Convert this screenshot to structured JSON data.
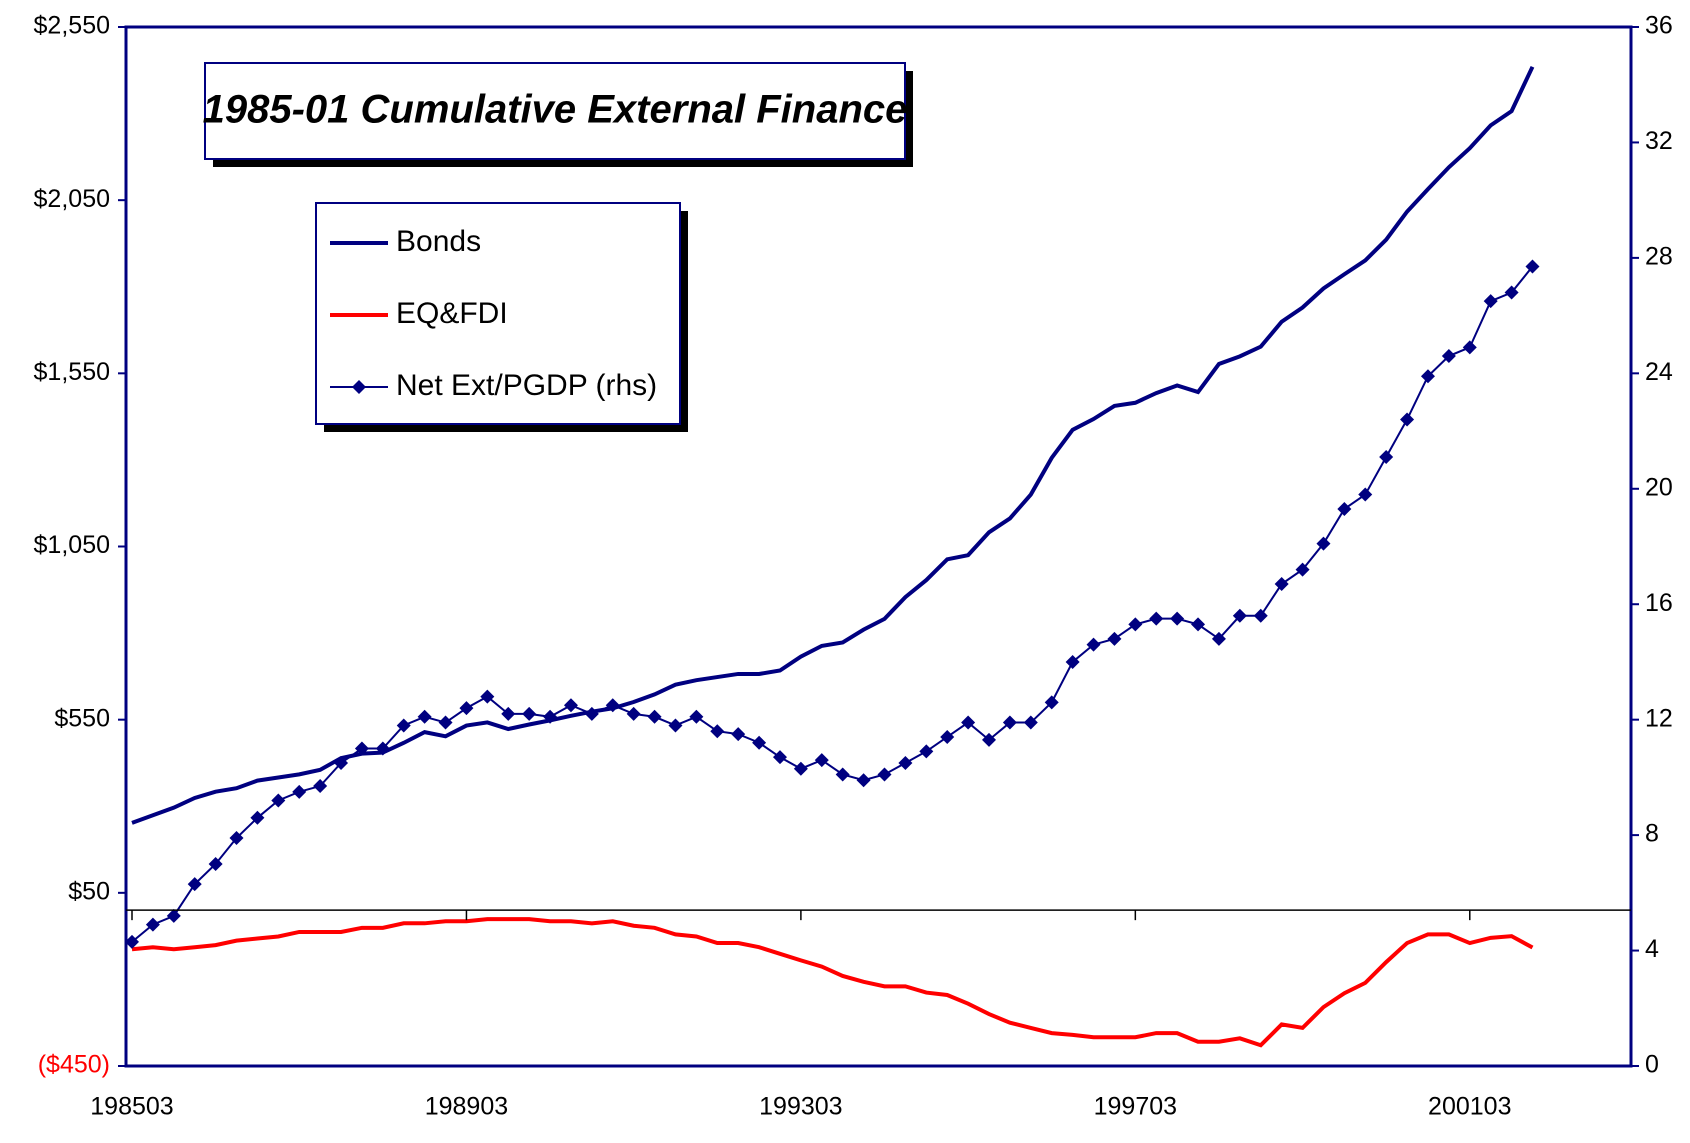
{
  "chart_data": {
    "type": "line",
    "title": "1985-01 Cumulative External Finance",
    "categories": [
      "198503",
      null,
      null,
      null,
      null,
      null,
      null,
      null,
      null,
      null,
      null,
      null,
      null,
      null,
      null,
      null,
      "198903",
      null,
      null,
      null,
      null,
      null,
      null,
      null,
      null,
      null,
      null,
      null,
      null,
      null,
      null,
      null,
      "199303",
      null,
      null,
      null,
      null,
      null,
      null,
      null,
      null,
      null,
      null,
      null,
      null,
      null,
      null,
      null,
      "199703",
      null,
      null,
      null,
      null,
      null,
      null,
      null,
      null,
      null,
      null,
      null,
      null,
      null,
      null,
      null,
      "200103",
      null,
      null,
      null
    ],
    "series": [
      {
        "name": "Bonds",
        "color": "#000080",
        "values": [
          252,
          274,
          296,
          324,
          342,
          352,
          374,
          383,
          392,
          405,
          439,
          452,
          455,
          483,
          514,
          502,
          533,
          542,
          523,
          536,
          548,
          561,
          573,
          583,
          601,
          623,
          651,
          664,
          673,
          682,
          682,
          692,
          732,
          763,
          773,
          810,
          841,
          904,
          953,
          1013,
          1025,
          1091,
          1131,
          1200,
          1306,
          1387,
          1418,
          1456,
          1465,
          1493,
          1515,
          1496,
          1577,
          1599,
          1627,
          1699,
          1740,
          1795,
          1836,
          1876,
          1936,
          2017,
          2082,
          2145,
          2200,
          2266,
          2307,
          2435
        ]
      },
      {
        "name": "EQ&FDI",
        "color": "#ff0000",
        "values": [
          -113,
          -107,
          -113,
          -107,
          -101,
          -88,
          -82,
          -76,
          -63,
          -63,
          -63,
          -51,
          -51,
          -38,
          -38,
          -32,
          -32,
          -26,
          -26,
          -26,
          -32,
          -32,
          -38,
          -32,
          -45,
          -51,
          -70,
          -76,
          -95,
          -95,
          -107,
          -126,
          -145,
          -163,
          -190,
          -207,
          -220,
          -220,
          -238,
          -245,
          -270,
          -300,
          -325,
          -340,
          -355,
          -360,
          -367,
          -367,
          -367,
          -355,
          -355,
          -380,
          -380,
          -370,
          -390,
          -330,
          -340,
          -280,
          -240,
          -210,
          -150,
          -95,
          -70,
          -70,
          -95,
          -80,
          -75,
          -108
        ]
      },
      {
        "name": "Net Ext/PGDP (rhs)",
        "color": "#000080",
        "axis": "y2",
        "marker": "diamond",
        "values": [
          4.3,
          4.9,
          5.2,
          6.3,
          7.0,
          7.9,
          8.6,
          9.2,
          9.5,
          9.7,
          10.5,
          11.0,
          11.0,
          11.8,
          12.1,
          11.9,
          12.4,
          12.8,
          12.2,
          12.2,
          12.1,
          12.5,
          12.2,
          12.5,
          12.2,
          12.1,
          11.8,
          12.1,
          11.6,
          11.5,
          11.2,
          10.7,
          10.3,
          10.6,
          10.1,
          9.9,
          10.1,
          10.5,
          10.9,
          11.4,
          11.9,
          11.3,
          11.9,
          11.9,
          12.6,
          14.0,
          14.6,
          14.8,
          15.3,
          15.5,
          15.5,
          15.3,
          14.8,
          15.6,
          15.6,
          16.7,
          17.2,
          18.1,
          19.3,
          19.8,
          21.1,
          22.4,
          23.9,
          24.6,
          24.9,
          26.5,
          26.8,
          27.7
        ]
      }
    ],
    "ylim": [
      -450,
      2550
    ],
    "yticks": [
      {
        "value": -450,
        "label": "($450)"
      },
      {
        "value": 50,
        "label": "$50"
      },
      {
        "value": 550,
        "label": "$550"
      },
      {
        "value": 1050,
        "label": "$1,050"
      },
      {
        "value": 1550,
        "label": "$1,550"
      },
      {
        "value": 2050,
        "label": "$2,050"
      },
      {
        "value": 2550,
        "label": "$2,550"
      }
    ],
    "y2lim": [
      0,
      36
    ],
    "y2ticks": [
      0,
      4,
      8,
      12,
      16,
      20,
      24,
      28,
      32,
      36
    ]
  }
}
